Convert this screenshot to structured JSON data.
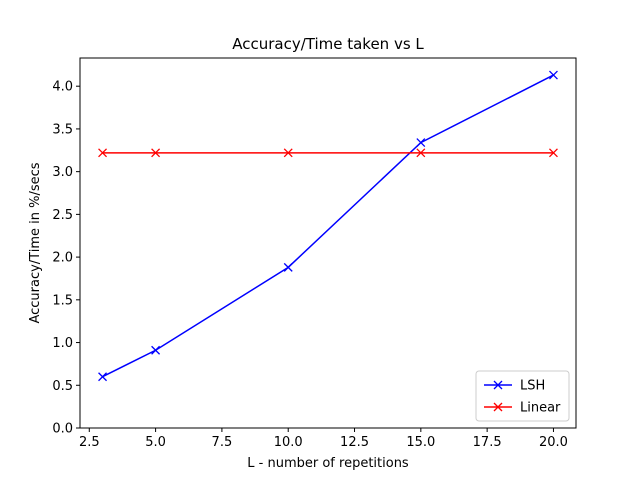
{
  "chart_data": {
    "type": "line",
    "title": "Accuracy/Time taken vs L",
    "xlabel": "L - number of repetitions",
    "ylabel": "Accuracy/Time in %/secs",
    "xlim": [
      2.15,
      20.85
    ],
    "ylim": [
      0.0,
      4.33
    ],
    "xticks": [
      2.5,
      5.0,
      7.5,
      10.0,
      12.5,
      15.0,
      17.5,
      20.0
    ],
    "xtick_labels": [
      "2.5",
      "5.0",
      "7.5",
      "10.0",
      "12.5",
      "15.0",
      "17.5",
      "20.0"
    ],
    "yticks": [
      0.0,
      0.5,
      1.0,
      1.5,
      2.0,
      2.5,
      3.0,
      3.5,
      4.0
    ],
    "ytick_labels": [
      "0.0",
      "0.5",
      "1.0",
      "1.5",
      "2.0",
      "2.5",
      "3.0",
      "3.5",
      "4.0"
    ],
    "grid": false,
    "legend_position": "lower-right",
    "x": [
      3,
      5,
      10,
      15,
      20
    ],
    "series": [
      {
        "name": "LSH",
        "color": "#0000ff",
        "marker": "x",
        "values": [
          0.6,
          0.91,
          1.88,
          3.34,
          4.13
        ]
      },
      {
        "name": "Linear",
        "color": "#ff0000",
        "marker": "x",
        "values": [
          3.22,
          3.22,
          3.22,
          3.22,
          3.22
        ]
      }
    ]
  }
}
